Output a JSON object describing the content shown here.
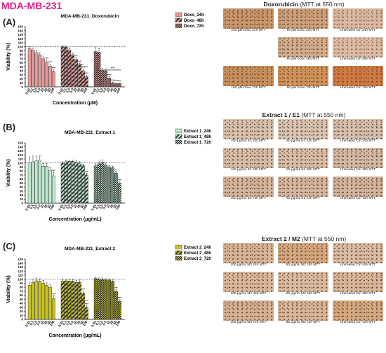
{
  "figure_title": "MDA-MB-231",
  "panels": [
    {
      "letter": "(A)",
      "micro_title": "Doxorubicin",
      "micro_subtitle": "(MTT at 550 nm)"
    },
    {
      "letter": "(B)",
      "micro_title": "Extract 1 / E1",
      "micro_subtitle": "(MTT at 550 nm)"
    },
    {
      "letter": "(C)",
      "micro_title": "Extract 2 / M2",
      "micro_subtitle": "(MTT at 550 nm)"
    }
  ],
  "colors": {
    "doxo": "#e39a9a",
    "extract1": "#bde9cf",
    "extract2": "#c8c41e",
    "title": "#e0218a"
  },
  "chart_data": [
    {
      "type": "bar",
      "title": "MDA-MB-231_Doxorubicin",
      "xlabel": "Concentration (μM)",
      "ylabel": "Viability (%)",
      "ylim": [
        0,
        150
      ],
      "yticks": [
        0,
        10,
        20,
        30,
        40,
        50,
        60,
        70,
        80,
        90,
        100,
        110,
        120,
        130,
        140,
        150
      ],
      "categories": [
        "0.01",
        "0.1",
        "1.0",
        "5.0",
        "10",
        "25",
        "50",
        "100"
      ],
      "reference_line": 100,
      "legend_position": "top-right",
      "series": [
        {
          "name": "Doxo_24h",
          "pattern": "solid",
          "values": [
            95,
            92,
            85,
            80,
            70,
            62,
            52,
            38
          ],
          "errors": [
            5,
            5,
            6,
            5,
            5,
            5,
            5,
            4
          ],
          "sig": [
            "",
            "",
            "",
            "",
            "*",
            "***",
            "****",
            "****"
          ]
        },
        {
          "name": "Doxo_48h",
          "pattern": "stripes",
          "values": [
            100,
            99,
            92,
            80,
            68,
            55,
            40,
            25
          ],
          "errors": [
            3,
            3,
            4,
            4,
            4,
            4,
            4,
            4
          ],
          "sig": [
            "",
            "",
            "",
            "",
            "**",
            "****",
            "****",
            "****"
          ]
        },
        {
          "name": "Doxo_72h",
          "pattern": "checker",
          "values": [
            88,
            86,
            42,
            40,
            22,
            10,
            8,
            8
          ],
          "errors": [
            10,
            9,
            4,
            4,
            3,
            2,
            2,
            2
          ],
          "sig": [
            "",
            "",
            "",
            "",
            "****",
            "****",
            "****",
            "****"
          ]
        }
      ],
      "significance_bars": [
        {
          "series": 1,
          "from": 4,
          "to": 7,
          "y": 50,
          "label": "****"
        },
        {
          "series": 2,
          "from": 3,
          "to": 7,
          "y": 42,
          "label": "****"
        }
      ]
    },
    {
      "type": "bar",
      "title": "MDA-MB-231_Extract 1",
      "xlabel": "Concentration (μg/mL)",
      "ylabel": "Viability (%)",
      "ylim": [
        0,
        150
      ],
      "yticks": [
        0,
        10,
        20,
        30,
        40,
        50,
        60,
        70,
        80,
        90,
        100,
        110,
        120,
        130,
        140,
        150
      ],
      "categories": [
        "0.01",
        "0.1",
        "1.0",
        "5.0",
        "10",
        "25",
        "50",
        "100"
      ],
      "reference_line": 100,
      "legend_position": "top-right",
      "series": [
        {
          "name": "Extract 1_24h",
          "pattern": "solid",
          "values": [
            100,
            103,
            105,
            107,
            92,
            92,
            82,
            68
          ],
          "errors": [
            15,
            14,
            12,
            11,
            7,
            7,
            6,
            8
          ],
          "sig": [
            "",
            "",
            "",
            "",
            "",
            "",
            "",
            "***"
          ]
        },
        {
          "name": "Extract 1_48h",
          "pattern": "stripes",
          "values": [
            100,
            103,
            104,
            104,
            102,
            100,
            93,
            70
          ],
          "errors": [
            3,
            3,
            3,
            3,
            3,
            3,
            4,
            4
          ],
          "sig": [
            "",
            "",
            "",
            "",
            "",
            "",
            "",
            "****"
          ]
        },
        {
          "name": "Extract 1_72h",
          "pattern": "checker",
          "values": [
            93,
            98,
            102,
            95,
            90,
            88,
            75,
            50
          ],
          "errors": [
            5,
            5,
            6,
            6,
            4,
            4,
            4,
            3
          ],
          "sig": [
            "",
            "",
            "",
            "",
            "",
            "",
            "**",
            "****"
          ]
        }
      ],
      "significance_bars": []
    },
    {
      "type": "bar",
      "title": "MDA-MB-231_Extract 2",
      "xlabel": "Concentration (μg/mL)",
      "ylabel": "Viability (%)",
      "ylim": [
        0,
        150
      ],
      "yticks": [
        0,
        10,
        20,
        30,
        40,
        50,
        60,
        70,
        80,
        90,
        100,
        110,
        120,
        130,
        140,
        150
      ],
      "categories": [
        "0.01",
        "0.1",
        "1.0",
        "5.0",
        "10",
        "25",
        "50",
        "100"
      ],
      "reference_line": 100,
      "legend_position": "top-right",
      "series": [
        {
          "name": "Extract 2_24h",
          "pattern": "solid",
          "values": [
            85,
            92,
            96,
            95,
            90,
            85,
            80,
            52
          ],
          "errors": [
            8,
            8,
            6,
            6,
            7,
            6,
            6,
            8
          ],
          "sig": [
            "",
            "",
            "",
            "",
            "",
            "",
            "",
            "****"
          ]
        },
        {
          "name": "Extract 2_48h",
          "pattern": "stripes",
          "values": [
            95,
            96,
            95,
            95,
            92,
            92,
            65,
            30
          ],
          "errors": [
            4,
            4,
            4,
            4,
            5,
            6,
            5,
            4
          ],
          "sig": [
            "",
            "",
            "",
            "",
            "",
            "",
            "****",
            "****"
          ]
        },
        {
          "name": "Extract 2_72h",
          "pattern": "checker",
          "values": [
            102,
            100,
            100,
            98,
            98,
            95,
            70,
            45
          ],
          "errors": [
            3,
            3,
            3,
            3,
            3,
            4,
            4,
            4
          ],
          "sig": [
            "",
            "",
            "",
            "",
            "",
            "",
            "***",
            "****"
          ]
        }
      ],
      "significance_bars": [
        {
          "series": 1,
          "from": 5,
          "to": 7,
          "y": 47,
          "label": ""
        }
      ]
    }
  ],
  "micrographs": [
    [
      {
        "caption": "100 μM Doxo 24h MTT",
        "tone": "#c9956a",
        "dots": "#6b4a33"
      },
      {
        "caption": "50 μM Doxo 24h MTT",
        "tone": "#cca07a",
        "dots": "#6b4a33"
      },
      {
        "caption": "Untreated Ctrl 24h MTT",
        "tone": "#d9b7a0",
        "dots": "#8a6a55"
      },
      null,
      {
        "caption": "50 μM Doxo 48h MTT",
        "tone": "#d2ac8c",
        "dots": "#6b4a33"
      },
      {
        "caption": "Untreated Ctrl 48h MTT",
        "tone": "#dcbaa5",
        "dots": "#8a6a55"
      },
      {
        "caption": "100 μM Doxo 72h MTT",
        "tone": "#c98f5a",
        "dots": "#6b4a33"
      },
      {
        "caption": "50 μM Doxo 72h MTT",
        "tone": "#d19258",
        "dots": "#6b4a33"
      },
      {
        "caption": "Untreated Ctrl 72h MTT",
        "tone": "#d07a42",
        "dots": "#7a4a2a"
      }
    ],
    [
      {
        "caption": "100 μg/mL E1 24h MTT",
        "tone": "#d8c0ad",
        "dots": "#5e4a3d"
      },
      {
        "caption": "50 μg/mL E1 24h MTT",
        "tone": "#d9c3b2",
        "dots": "#5e4a3d"
      },
      {
        "caption": "Untreated Ctrl 24h MTT",
        "tone": "#d6bfae",
        "dots": "#5e4a3d"
      },
      {
        "caption": "100 μg/mL E1 48h MTT",
        "tone": "#d7bba6",
        "dots": "#5e4a3d"
      },
      {
        "caption": "50 μg/mL E1 48h MTT",
        "tone": "#d8bca6",
        "dots": "#5e4a3d"
      },
      {
        "caption": "Untreated Ctrl 48h MTT",
        "tone": "#d4b8a3",
        "dots": "#5e4a3d"
      },
      {
        "caption": "100 μg/mL E1 72h MTT",
        "tone": "#d3b39a",
        "dots": "#5e4a3d"
      },
      {
        "caption": "50 μg/mL E1 72h MTT",
        "tone": "#d5b69e",
        "dots": "#5e4a3d"
      },
      {
        "caption": "Untreated Ctrl 72h MTT",
        "tone": "#d2b49c",
        "dots": "#5e4a3d"
      }
    ],
    [
      {
        "caption": "100 μg/mL M2 24h MTT",
        "tone": "#d6b497",
        "dots": "#6b4a33"
      },
      {
        "caption": "50 μg/mL M2 24h MTT",
        "tone": "#d4a77e",
        "dots": "#6b4a33"
      },
      {
        "caption": "Untreated Ctrl 24h MTT",
        "tone": "#d9bca4",
        "dots": "#6b4a33"
      },
      {
        "caption": "100 μg/mL M2 48h MTT",
        "tone": "#d8b79c",
        "dots": "#6b4a33"
      },
      {
        "caption": "50 μg/mL M2 48h MTT",
        "tone": "#d9bba2",
        "dots": "#6b4a33"
      },
      {
        "caption": "Untreated Ctrl 48h MTT",
        "tone": "#d7b69c",
        "dots": "#6b4a33"
      },
      {
        "caption": "100 μg/mL M2 72h MTT",
        "tone": "#d6b092",
        "dots": "#6b4a33"
      },
      {
        "caption": "50 μg/mL M2 72h MTT",
        "tone": "#d8b599",
        "dots": "#6b4a33"
      },
      {
        "caption": "Untreated Ctrl 72h MTT",
        "tone": "#d5a980",
        "dots": "#6b4a33"
      }
    ]
  ]
}
